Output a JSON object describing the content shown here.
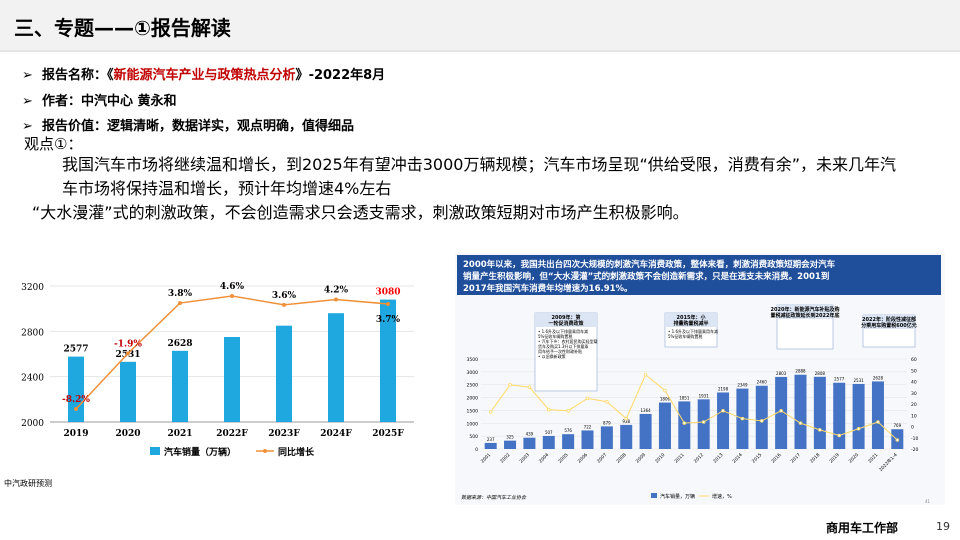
{
  "header": {
    "title": "三、专题——①报告解读"
  },
  "bullets": [
    {
      "label": "报告名称：",
      "quote_open": "《",
      "name": "新能源汽车产业与政策热点分析",
      "quote_close": "》",
      "suffix": "-2022年8月"
    },
    {
      "label": "作者：",
      "value": "中汽中心 黄永和"
    },
    {
      "label": "报告价值：",
      "value": "逻辑清晰，数据详实，观点明确，值得细品"
    }
  ],
  "viewpoint": {
    "label": "观点①：",
    "body": "我国汽车市场将继续温和增长，到2025年有望冲击3000万辆规模；汽车市场呈现“供给受限，消费有余”，未来几年汽车市场将保持温和增长，预计年均增速4%左右",
    "line2": "“大水漫灌”式的刺激政策，不会创造需求只会透支需求，刺激政策短期对市场产生积极影响。"
  },
  "left_chart": {
    "source": "中汽政研预测",
    "chart_data": {
      "type": "bar",
      "categories": [
        "2019",
        "2020",
        "2021",
        "2022F",
        "2023F",
        "2024F",
        "2025F"
      ],
      "series": [
        {
          "name": "汽车销量（万辆）",
          "values": [
            2577,
            2531,
            2628,
            2750,
            2850,
            2960,
            3080
          ]
        },
        {
          "name": "同比增长",
          "values": [
            -8.2,
            -1.9,
            3.8,
            4.6,
            3.6,
            4.2,
            3.7
          ]
        }
      ],
      "bar_labels": [
        "2577",
        "2531",
        "2628",
        "",
        "",
        "",
        "3080"
      ],
      "line_labels": [
        "-8.2%",
        "-1.9%",
        "3.8%",
        "4.6%",
        "3.6%",
        "4.2%",
        "3.7%"
      ],
      "yticks": [
        "2000",
        "2400",
        "2800",
        "3200"
      ],
      "ylim": [
        2000,
        3200
      ],
      "colors": {
        "bar": "#1fa7df",
        "line": "#f0913a",
        "bar_last_label": "#ff0000",
        "line_label": "#c00000"
      }
    }
  },
  "right_chart": {
    "banner": "2000年以来，我国共出台四次大规模的刺激汽车消费政策，整体来看，刺激消费政策短期会对汽车销量产生积极影响，但“大水漫灌”式的刺激政策不会创造新需求，只是在透支未来消费。2001到2017年我国汽车消费年均增速为16.91%。",
    "callouts": [
      {
        "title": "2009年：第一轮促消费政策",
        "items": [
          "1.6升及以下排量乘用车减 5%征收车辆购置税",
          "汽车下乡：农村居民购买轻型载货车及购买1.3升以下排量乘用车给予一次性财政补贴",
          "以旧换新政策"
        ]
      },
      {
        "title": "2015年：小排量购置税减半",
        "items": [
          "1.6升及以下排量乘用车减 5%征收车辆购置税"
        ]
      },
      {
        "title": "2020年：新能源汽车补贴及购置税减征政策延长到2022年底",
        "items": []
      },
      {
        "title": "2022年：阶段性减征部分乘用车购置税600亿元",
        "items": []
      }
    ],
    "source": "数据来源：中国汽车工业协会",
    "page_tag": "41",
    "chart_data": {
      "type": "bar",
      "categories": [
        "2001",
        "2002",
        "2003",
        "2004",
        "2005",
        "2006",
        "2007",
        "2008",
        "2009",
        "2010",
        "2011",
        "2012",
        "2013",
        "2014",
        "2015",
        "2016",
        "2017",
        "2018",
        "2019",
        "2020",
        "2021",
        "2022年1-4"
      ],
      "series": [
        {
          "name": "汽车销量，万辆",
          "values": [
            237,
            325,
            439,
            507,
            576,
            722,
            879,
            938,
            1364,
            1806,
            1851,
            1931,
            2198,
            2349,
            2460,
            2803,
            2888,
            2808,
            2577,
            2531,
            2628,
            769
          ]
        },
        {
          "name": "增速，%",
          "values": [
            13,
            37,
            35,
            15,
            14,
            25,
            22,
            7,
            46,
            32,
            3,
            4,
            14,
            7,
            5,
            14,
            3,
            -3,
            -8,
            -2,
            4,
            -12
          ]
        }
      ],
      "bar_labels": [
        "237",
        "325",
        "439",
        "507",
        "576",
        "722",
        "879",
        "938",
        "1364",
        "1806",
        "1851",
        "1931",
        "2198",
        "2349",
        "2460",
        "2803",
        "2888",
        "2808",
        "2577",
        "2531",
        "2628",
        "769"
      ],
      "yticks_left": [
        "0",
        "500",
        "1000",
        "1500",
        "2000",
        "2500",
        "3000",
        "3500"
      ],
      "yticks_right": [
        "-20",
        "-10",
        "0",
        "10",
        "20",
        "30",
        "40",
        "50",
        "60"
      ],
      "ylim": [
        0,
        3500
      ],
      "y2lim": [
        -20,
        60
      ],
      "colors": {
        "bar": "#4472c4",
        "line": "#ffd966",
        "banner": "#1f4e9b"
      }
    }
  },
  "footer": {
    "dept": "商用车工作部",
    "page": "19"
  }
}
